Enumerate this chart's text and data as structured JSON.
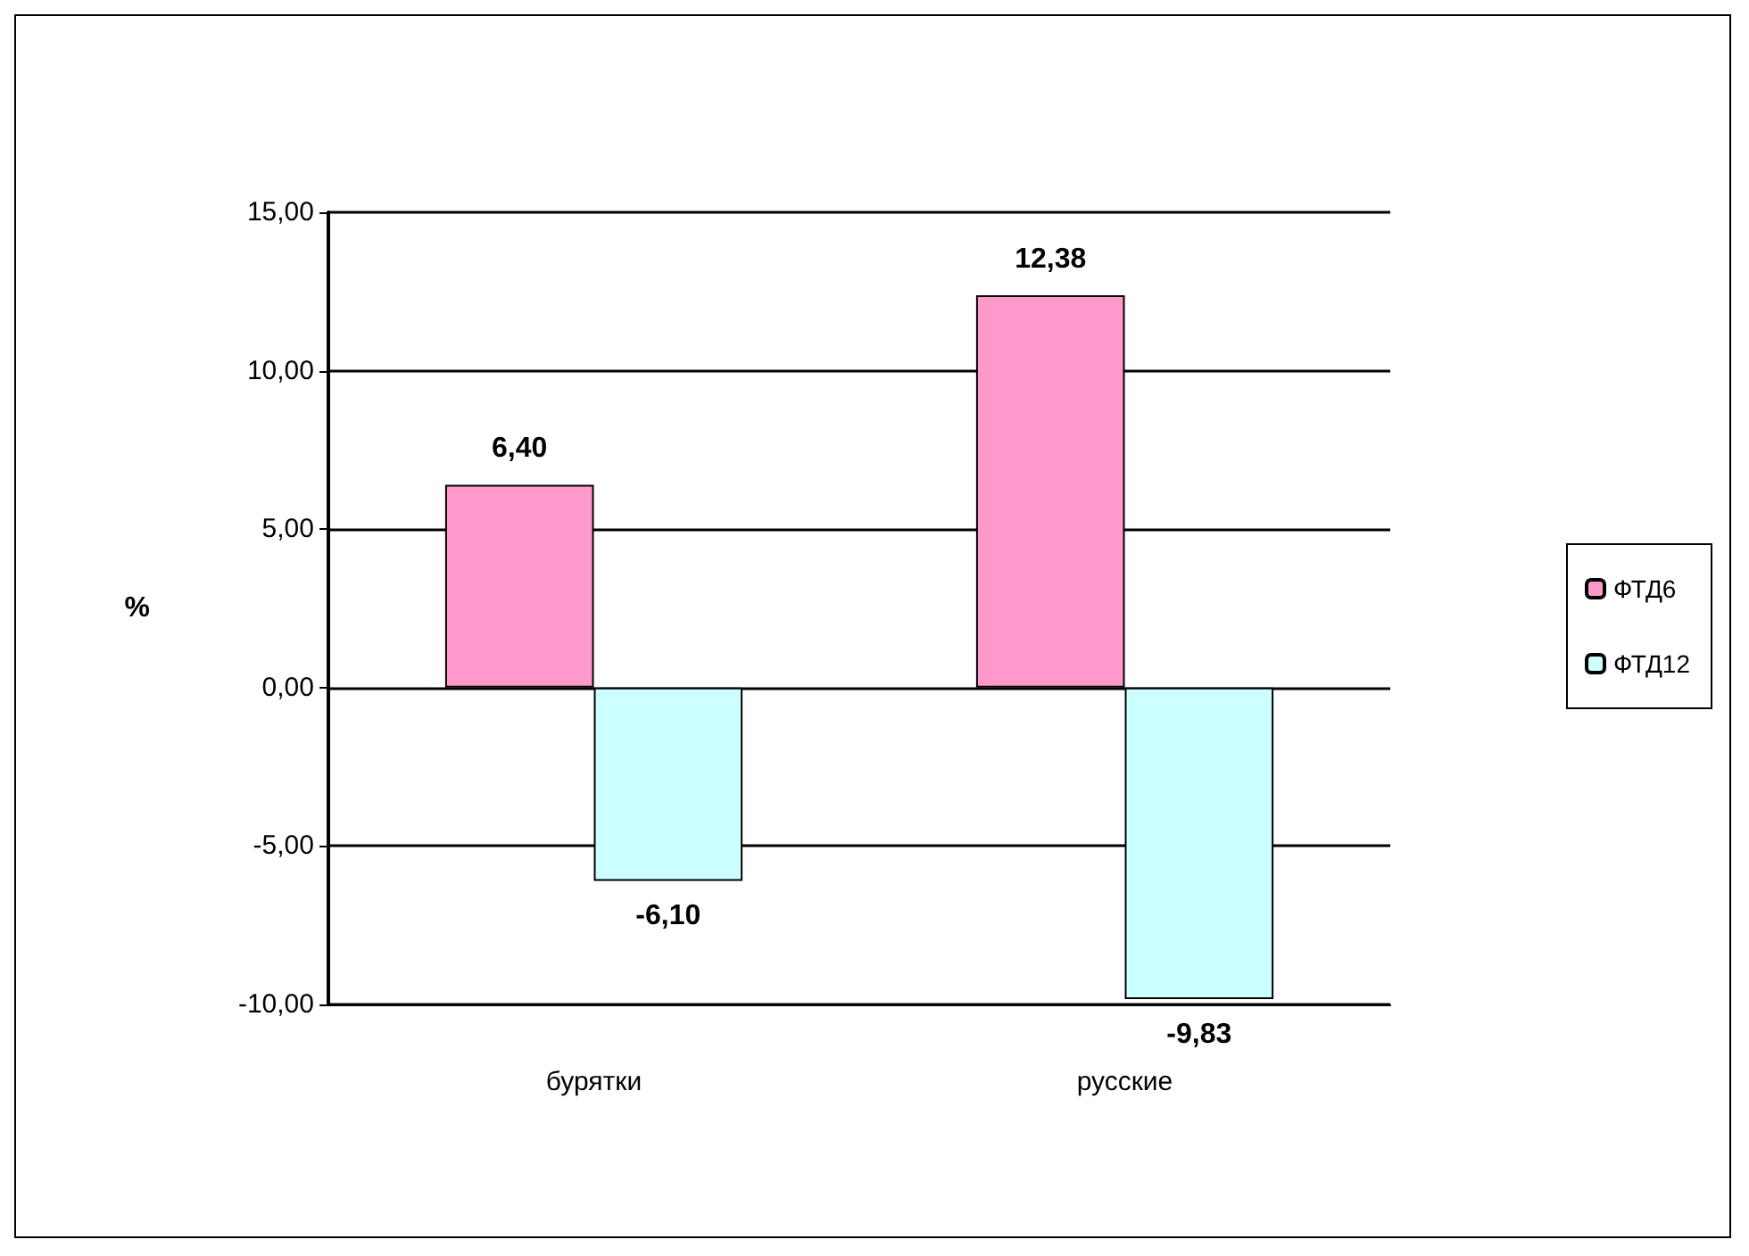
{
  "chart_data": {
    "type": "bar",
    "ylabel": "%",
    "categories": [
      "бурятки",
      "русские"
    ],
    "series": [
      {
        "name": "ФТД6",
        "color": "#ff99cc",
        "values": [
          6.4,
          12.38
        ],
        "value_labels": [
          "6,40",
          "12,38"
        ]
      },
      {
        "name": "ФТД12",
        "color": "#ccffff",
        "values": [
          -6.1,
          -9.83
        ],
        "value_labels": [
          "-6,10",
          "-9,83"
        ]
      }
    ],
    "ylim": [
      -10,
      15
    ],
    "yticks": [
      {
        "value": -10,
        "label": "-10,00"
      },
      {
        "value": -5,
        "label": "-5,00"
      },
      {
        "value": 0,
        "label": "0,00"
      },
      {
        "value": 5,
        "label": "5,00"
      },
      {
        "value": 10,
        "label": "10,00"
      },
      {
        "value": 15,
        "label": "15,00"
      }
    ],
    "grid": "y",
    "legend": "right"
  }
}
